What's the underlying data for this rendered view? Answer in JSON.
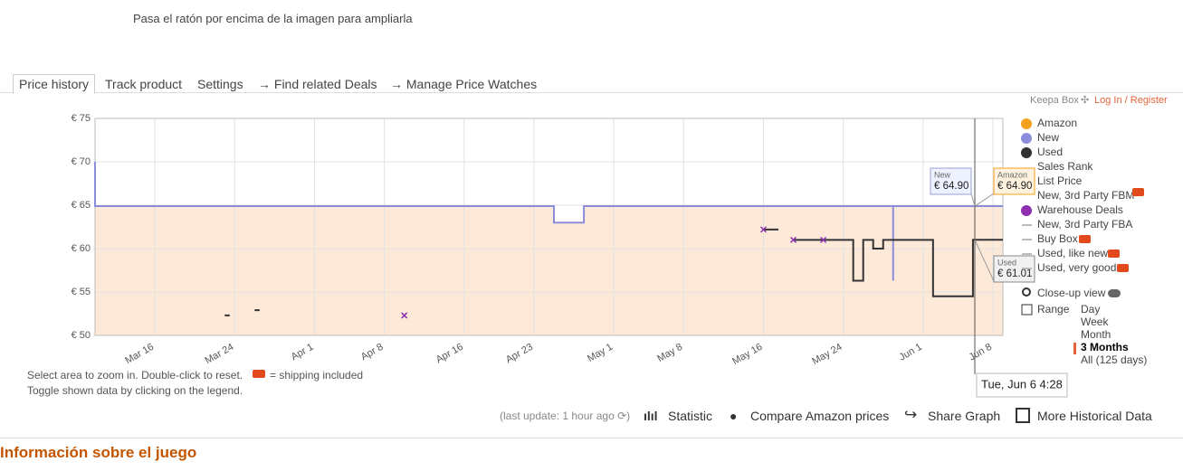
{
  "hint": "Pasa el ratón por encima de la imagen para ampliarla",
  "tabs": [
    "Price history",
    "Track product",
    "Settings",
    "→ Find related Deals",
    "→ Manage Price Watches"
  ],
  "keepa_box": "Keepa Box",
  "login": "Log In / Register",
  "chart_data": {
    "type": "line",
    "xlim": [
      "Mar 10",
      "Jun 9"
    ],
    "xticks": [
      "Mar 16",
      "Mar 24",
      "Apr 1",
      "Apr 8",
      "Apr 16",
      "Apr 23",
      "May 1",
      "May 8",
      "May 16",
      "May 24",
      "Jun 1",
      "Jun 8"
    ],
    "ylim": [
      50,
      75
    ],
    "yticks": [
      {
        "value": 50,
        "label": "€ 50"
      },
      {
        "value": 55,
        "label": "€ 55"
      },
      {
        "value": 60,
        "label": "€ 60"
      },
      {
        "value": 65,
        "label": "€ 65"
      },
      {
        "value": 70,
        "label": "€ 70"
      },
      {
        "value": 75,
        "label": "€ 75"
      }
    ],
    "grid": true,
    "fill_color": "#fde9d8",
    "series": [
      {
        "name": "Amazon",
        "color": "#f6a11c",
        "x": [
          "Apr 28",
          "Jun 9"
        ],
        "values": [
          64.9,
          64.9
        ],
        "hover_value": 64.9,
        "hover_label": "€ 64.90"
      },
      {
        "name": "New",
        "color": "#8c8cdc",
        "fill": true,
        "x": [
          "Mar 10",
          "Mar 10",
          "Apr 25",
          "Apr 25",
          "Apr 28",
          "Apr 28",
          "May 29",
          "May 29",
          "May 29",
          "Jun 9"
        ],
        "values": [
          70,
          64.9,
          64.9,
          63,
          63,
          64.9,
          64.9,
          56.3,
          64.9,
          64.9
        ],
        "hover_value": 64.9,
        "hover_label": "€ 64.90"
      },
      {
        "name": "Used",
        "color": "#333333",
        "x": [
          "Mar 23",
          "Mar 23 12:00",
          "Mar 24",
          "Mar 26",
          "Mar 26 12:00",
          "May 1",
          "May 16",
          "May 17 12:00",
          "May 18",
          "May 19",
          "May 25",
          "May 25",
          "May 26",
          "May 26",
          "May 27",
          "May 27",
          "May 28",
          "May 28",
          "Jun 2",
          "Jun 2",
          "Jun 6",
          "Jun 6",
          "Jun 9"
        ],
        "values": [
          52.3,
          52.3,
          null,
          52.9,
          52.9,
          null,
          62.2,
          62.2,
          null,
          61,
          61,
          56.3,
          56.3,
          61,
          61,
          60,
          60,
          61,
          61,
          54.5,
          54.5,
          61.01,
          61.01
        ],
        "hover_value": 61.01,
        "hover_label": "€ 61.01"
      },
      {
        "name": "Warehouse Deals",
        "color": "#8e2fb0",
        "type": "scatter",
        "x": [
          "Apr 10",
          "May 16",
          "May 19",
          "May 22"
        ],
        "values": [
          52.3,
          62.2,
          61,
          61
        ]
      }
    ],
    "legend_extra_top": [
      "Sales Rank",
      "List Price",
      "New, 3rd Party FBM"
    ],
    "legend_extra_bottom": [
      "New, 3rd Party FBA",
      "Buy Box",
      "Used, like new",
      "Used, very good"
    ],
    "cursor": {
      "x": "Jun 6 4:28",
      "label": "Tue, Jun 6 4:28"
    }
  },
  "controls": {
    "closeup": "Close-up view",
    "range": "Range",
    "ranges": [
      {
        "label": "Day"
      },
      {
        "label": "Week"
      },
      {
        "label": "Month"
      },
      {
        "label": "3 Months",
        "selected": true
      },
      {
        "label": "All (125 days)"
      }
    ]
  },
  "notes": [
    "Select area to zoom in. Double-click to reset.",
    "= shipping included",
    "Toggle shown data by clicking on the legend."
  ],
  "footer": {
    "update": "(last update: 1 hour ago",
    "update_end": ")",
    "links": [
      "Statistic",
      "Compare Amazon prices",
      "Share Graph",
      "More Historical Data"
    ]
  },
  "section_title": "Información sobre el juego"
}
